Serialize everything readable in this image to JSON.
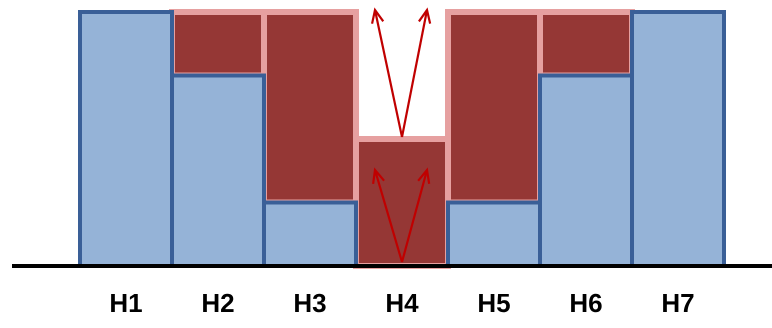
{
  "bars": [
    {
      "label": "H1",
      "height": 4,
      "fill_to": 4
    },
    {
      "label": "H2",
      "height": 3,
      "fill_to": 4
    },
    {
      "label": "H3",
      "height": 1,
      "fill_to": 4
    },
    {
      "label": "H4",
      "height": 0,
      "fill_to": 2
    },
    {
      "label": "H5",
      "height": 1,
      "fill_to": 4
    },
    {
      "label": "H6",
      "height": 3,
      "fill_to": 4
    },
    {
      "label": "H7",
      "height": 4,
      "fill_to": 4
    }
  ],
  "colors": {
    "bar_fill": "#95b3d7",
    "bar_stroke": "#3a5f97",
    "water_fill": "#953735",
    "water_edge": "#e6a0a0",
    "arrow": "#c00000",
    "ground": "#000000"
  }
}
